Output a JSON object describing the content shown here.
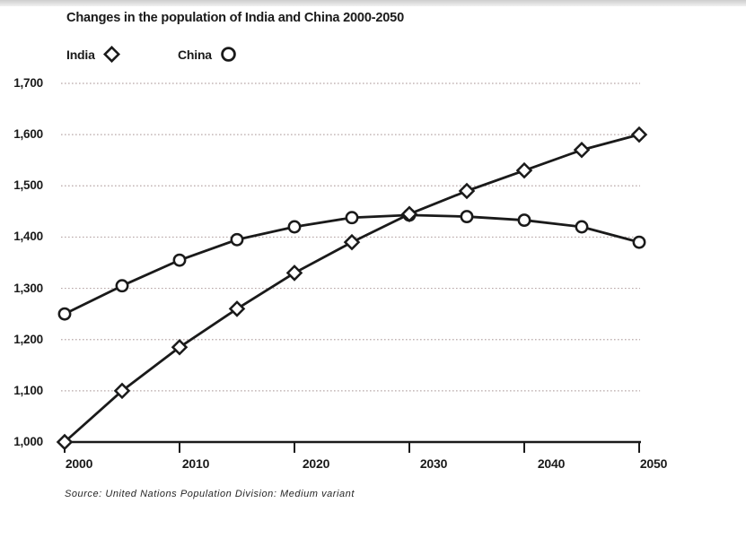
{
  "header": {
    "title": "Changes in the population of India and China 2000-2050"
  },
  "legend": {
    "items": [
      {
        "label": "India",
        "marker": "diamond"
      },
      {
        "label": "China",
        "marker": "circle"
      }
    ]
  },
  "footer": {
    "source": "Source: United Nations Population Division: Medium variant"
  },
  "chart_data": {
    "type": "line",
    "title": "Changes in the population of India and China 2000-2050",
    "xlabel": "",
    "ylabel": "",
    "xlim": [
      2000,
      2050
    ],
    "ylim": [
      1000,
      1700
    ],
    "grid": "horizontal-dotted",
    "legend_position": "top-left",
    "x": [
      2000,
      2005,
      2010,
      2015,
      2020,
      2025,
      2030,
      2035,
      2040,
      2045,
      2050
    ],
    "x_tick_labels": [
      "2000",
      "2010",
      "2020",
      "2030",
      "2040",
      "2050"
    ],
    "y_tick_labels": [
      "1,700",
      "1,600",
      "1,500",
      "1,400",
      "1,300",
      "1,200",
      "1,100",
      "1,000"
    ],
    "y_tick_values": [
      1700,
      1600,
      1500,
      1400,
      1300,
      1200,
      1100,
      1000
    ],
    "series": [
      {
        "name": "India",
        "marker": "diamond",
        "values": [
          1000,
          1100,
          1185,
          1260,
          1330,
          1390,
          1445,
          1490,
          1530,
          1570,
          1600
        ]
      },
      {
        "name": "China",
        "marker": "circle",
        "values": [
          1250,
          1305,
          1355,
          1395,
          1420,
          1438,
          1443,
          1440,
          1433,
          1420,
          1390
        ]
      }
    ],
    "source": "Source: United Nations Population Division: Medium variant",
    "colors": {
      "line": "#1a1a1a",
      "marker_fill": "#ffffff",
      "grid": "#a18b8b",
      "text": "#1a1a1a",
      "background": "#ffffff"
    }
  }
}
